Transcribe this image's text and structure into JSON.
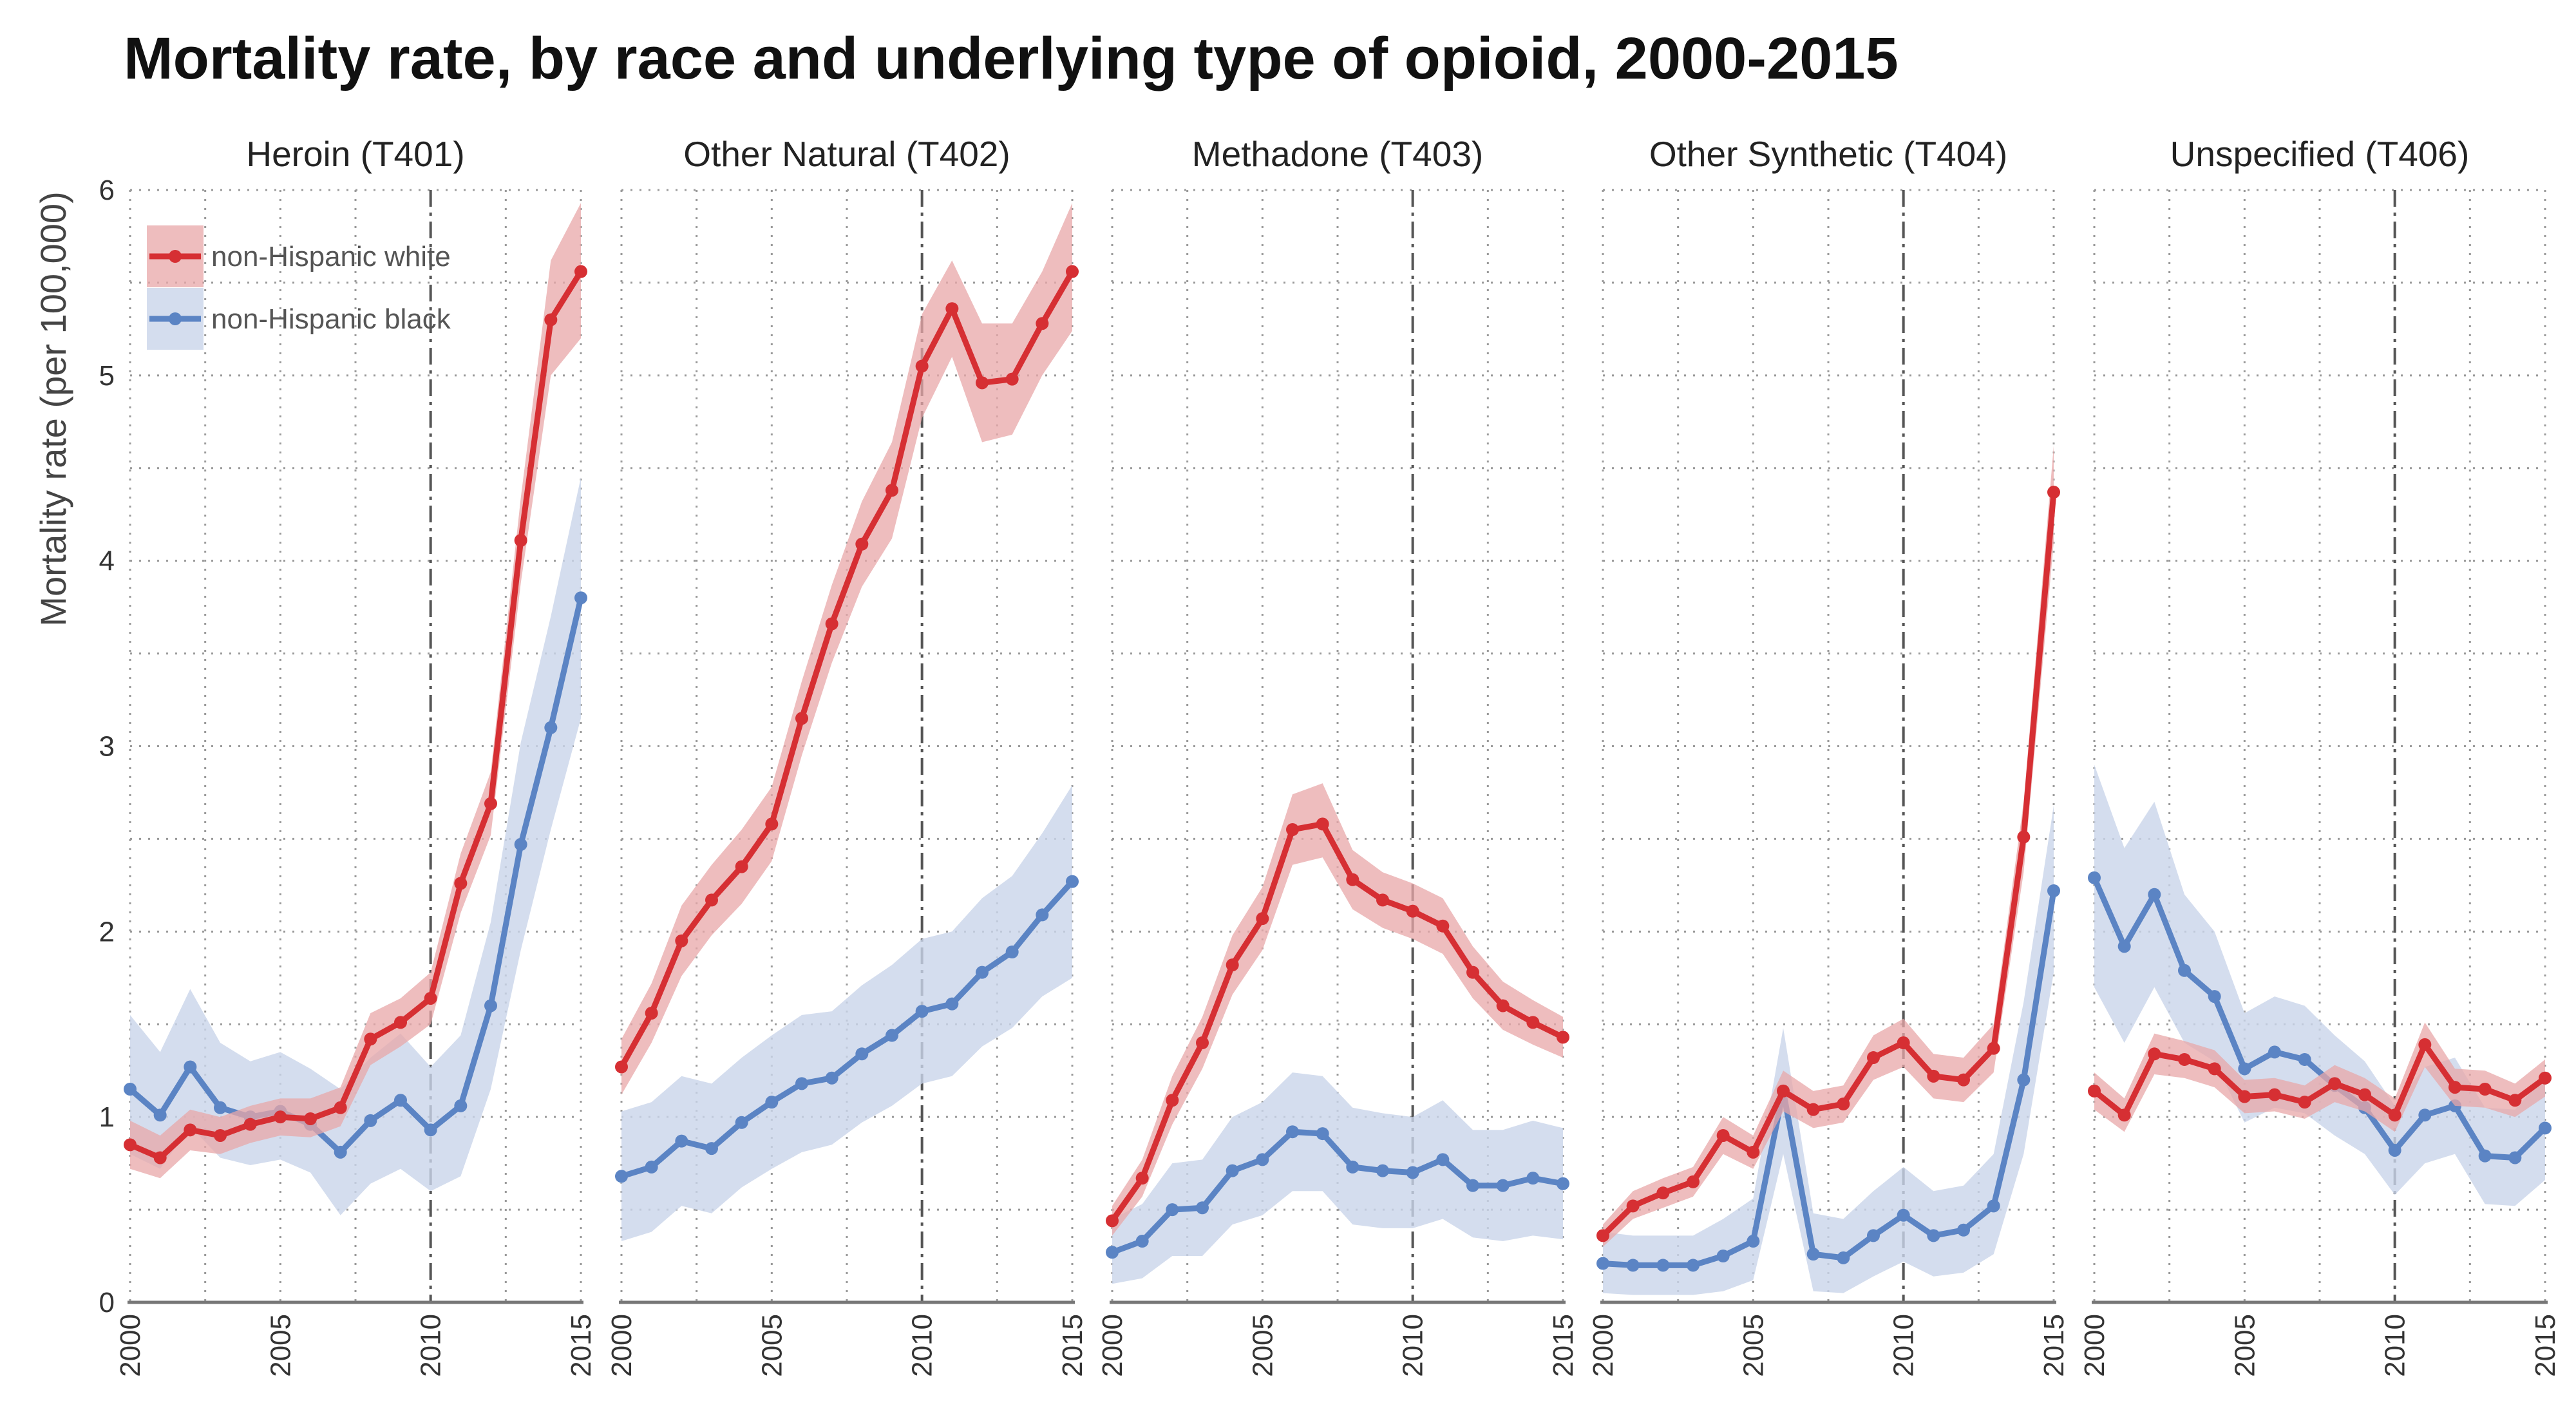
{
  "chart_data": {
    "type": "line",
    "title": "Mortality rate, by race and underlying type of opioid, 2000-2015",
    "ylabel": "Mortality rate (per 100,000)",
    "xlabel": "",
    "ylim": [
      0,
      6
    ],
    "yticks": [
      "0",
      "1",
      "2",
      "3",
      "4",
      "5",
      "6"
    ],
    "xlim": [
      2000,
      2015
    ],
    "xticks": [
      "2000",
      "2005",
      "2010",
      "2015"
    ],
    "reference_line_x": 2010,
    "grid": true,
    "legend": {
      "placement": "top-left",
      "entries": [
        {
          "name": "non-Hispanic white",
          "color": "#d62f33"
        },
        {
          "name": "non-Hispanic black",
          "color": "#5b84c4"
        }
      ]
    },
    "colors": {
      "white_line": "#d62f33",
      "white_band": "#e8a7a8",
      "black_line": "#5b84c4",
      "black_band": "#c9d5ea",
      "ref_line": "#555555",
      "grid": "#9a9a9a",
      "axis": "#777777"
    },
    "x": [
      2000,
      2001,
      2002,
      2003,
      2004,
      2005,
      2006,
      2007,
      2008,
      2009,
      2010,
      2011,
      2012,
      2013,
      2014,
      2015
    ],
    "facets": [
      {
        "title": "Heroin (T401)",
        "series": [
          {
            "name": "non-Hispanic white",
            "values": [
              0.85,
              0.78,
              0.93,
              0.9,
              0.96,
              1.0,
              0.99,
              1.05,
              1.42,
              1.51,
              1.64,
              2.26,
              2.69,
              4.11,
              5.3,
              5.56
            ],
            "lower": [
              0.72,
              0.67,
              0.82,
              0.8,
              0.86,
              0.9,
              0.89,
              0.95,
              1.28,
              1.38,
              1.5,
              2.1,
              2.52,
              3.88,
              5.0,
              5.2
            ],
            "upper": [
              0.98,
              0.9,
              1.04,
              1.0,
              1.06,
              1.1,
              1.1,
              1.16,
              1.56,
              1.64,
              1.78,
              2.42,
              2.86,
              4.34,
              5.62,
              5.93
            ]
          },
          {
            "name": "non-Hispanic black",
            "values": [
              1.15,
              1.01,
              1.27,
              1.05,
              1.0,
              1.03,
              0.96,
              0.81,
              0.98,
              1.09,
              0.93,
              1.06,
              1.6,
              2.47,
              3.1,
              3.8
            ],
            "lower": [
              0.8,
              0.72,
              0.95,
              0.78,
              0.74,
              0.77,
              0.7,
              0.47,
              0.64,
              0.72,
              0.6,
              0.68,
              1.15,
              1.9,
              2.55,
              3.15
            ],
            "upper": [
              1.55,
              1.35,
              1.69,
              1.4,
              1.3,
              1.35,
              1.26,
              1.15,
              1.32,
              1.45,
              1.27,
              1.44,
              2.05,
              3.02,
              3.7,
              4.45
            ]
          }
        ]
      },
      {
        "title": "Other Natural (T402)",
        "series": [
          {
            "name": "non-Hispanic white",
            "values": [
              1.27,
              1.56,
              1.95,
              2.17,
              2.35,
              2.58,
              3.15,
              3.66,
              4.09,
              4.38,
              5.05,
              5.36,
              4.96,
              4.98,
              5.28,
              5.56
            ],
            "lower": [
              1.12,
              1.4,
              1.76,
              1.98,
              2.15,
              2.38,
              2.95,
              3.45,
              3.86,
              4.12,
              4.77,
              5.1,
              4.64,
              4.68,
              5.0,
              5.24
            ],
            "upper": [
              1.42,
              1.72,
              2.14,
              2.36,
              2.55,
              2.78,
              3.35,
              3.87,
              4.32,
              4.64,
              5.33,
              5.62,
              5.28,
              5.28,
              5.56,
              5.93
            ]
          },
          {
            "name": "non-Hispanic black",
            "values": [
              0.68,
              0.73,
              0.87,
              0.83,
              0.97,
              1.08,
              1.18,
              1.21,
              1.34,
              1.44,
              1.57,
              1.61,
              1.78,
              1.89,
              2.09,
              2.27
            ],
            "lower": [
              0.33,
              0.38,
              0.52,
              0.48,
              0.62,
              0.72,
              0.81,
              0.85,
              0.97,
              1.06,
              1.18,
              1.22,
              1.38,
              1.48,
              1.65,
              1.75
            ],
            "upper": [
              1.03,
              1.08,
              1.22,
              1.18,
              1.32,
              1.44,
              1.55,
              1.57,
              1.71,
              1.82,
              1.96,
              2.0,
              2.18,
              2.3,
              2.53,
              2.79
            ]
          }
        ]
      },
      {
        "title": "Methadone (T403)",
        "series": [
          {
            "name": "non-Hispanic white",
            "values": [
              0.44,
              0.67,
              1.09,
              1.4,
              1.82,
              2.07,
              2.55,
              2.58,
              2.28,
              2.17,
              2.11,
              2.03,
              1.78,
              1.6,
              1.51,
              1.43
            ],
            "lower": [
              0.36,
              0.57,
              0.96,
              1.26,
              1.66,
              1.9,
              2.36,
              2.4,
              2.12,
              2.02,
              1.96,
              1.88,
              1.64,
              1.47,
              1.39,
              1.32
            ],
            "upper": [
              0.52,
              0.77,
              1.22,
              1.54,
              1.98,
              2.24,
              2.74,
              2.8,
              2.44,
              2.32,
              2.26,
              2.18,
              1.92,
              1.73,
              1.63,
              1.54
            ]
          },
          {
            "name": "non-Hispanic black",
            "values": [
              0.27,
              0.33,
              0.5,
              0.51,
              0.71,
              0.77,
              0.92,
              0.91,
              0.73,
              0.71,
              0.7,
              0.77,
              0.63,
              0.63,
              0.67,
              0.64
            ],
            "lower": [
              0.1,
              0.13,
              0.25,
              0.25,
              0.42,
              0.47,
              0.6,
              0.6,
              0.42,
              0.4,
              0.4,
              0.45,
              0.35,
              0.33,
              0.36,
              0.34
            ],
            "upper": [
              0.45,
              0.53,
              0.75,
              0.77,
              1.0,
              1.08,
              1.24,
              1.22,
              1.05,
              1.02,
              1.0,
              1.09,
              0.93,
              0.93,
              0.98,
              0.94
            ]
          }
        ]
      },
      {
        "title": "Other Synthetic (T404)",
        "series": [
          {
            "name": "non-Hispanic white",
            "values": [
              0.36,
              0.52,
              0.59,
              0.65,
              0.9,
              0.81,
              1.14,
              1.04,
              1.07,
              1.32,
              1.4,
              1.22,
              1.2,
              1.37,
              2.51,
              4.37
            ],
            "lower": [
              0.3,
              0.45,
              0.51,
              0.57,
              0.8,
              0.72,
              1.03,
              0.94,
              0.97,
              1.2,
              1.27,
              1.1,
              1.08,
              1.24,
              2.32,
              4.1
            ],
            "upper": [
              0.42,
              0.6,
              0.67,
              0.73,
              1.0,
              0.9,
              1.25,
              1.14,
              1.17,
              1.44,
              1.53,
              1.34,
              1.32,
              1.5,
              2.7,
              4.62
            ]
          },
          {
            "name": "non-Hispanic black",
            "values": [
              0.21,
              0.2,
              0.2,
              0.2,
              0.25,
              0.33,
              1.14,
              0.26,
              0.24,
              0.36,
              0.47,
              0.36,
              0.39,
              0.52,
              1.2,
              2.22
            ],
            "lower": [
              0.05,
              0.04,
              0.04,
              0.04,
              0.06,
              0.12,
              0.8,
              0.06,
              0.05,
              0.14,
              0.22,
              0.14,
              0.16,
              0.26,
              0.8,
              1.78
            ],
            "upper": [
              0.38,
              0.36,
              0.36,
              0.36,
              0.45,
              0.56,
              1.48,
              0.48,
              0.45,
              0.6,
              0.73,
              0.6,
              0.63,
              0.8,
              1.62,
              2.68
            ]
          }
        ]
      },
      {
        "title": "Unspecified (T406)",
        "series": [
          {
            "name": "non-Hispanic white",
            "values": [
              1.14,
              1.01,
              1.34,
              1.31,
              1.26,
              1.11,
              1.12,
              1.08,
              1.18,
              1.12,
              1.01,
              1.39,
              1.16,
              1.15,
              1.09,
              1.21
            ],
            "lower": [
              1.04,
              0.92,
              1.23,
              1.21,
              1.16,
              1.02,
              1.03,
              0.99,
              1.08,
              1.03,
              0.92,
              1.27,
              1.06,
              1.05,
              1.0,
              1.11
            ],
            "upper": [
              1.24,
              1.1,
              1.45,
              1.41,
              1.36,
              1.2,
              1.21,
              1.17,
              1.28,
              1.21,
              1.1,
              1.51,
              1.26,
              1.25,
              1.18,
              1.31
            ]
          },
          {
            "name": "non-Hispanic black",
            "values": [
              2.29,
              1.92,
              2.2,
              1.79,
              1.65,
              1.26,
              1.35,
              1.31,
              1.17,
              1.05,
              0.82,
              1.01,
              1.06,
              0.79,
              0.78,
              0.94
            ],
            "lower": [
              1.7,
              1.4,
              1.7,
              1.4,
              1.3,
              0.97,
              1.05,
              1.02,
              0.9,
              0.8,
              0.58,
              0.75,
              0.8,
              0.53,
              0.52,
              0.66
            ],
            "upper": [
              2.9,
              2.45,
              2.7,
              2.2,
              2.0,
              1.56,
              1.65,
              1.6,
              1.44,
              1.3,
              1.06,
              1.27,
              1.32,
              1.05,
              1.04,
              1.22
            ]
          }
        ]
      }
    ]
  }
}
